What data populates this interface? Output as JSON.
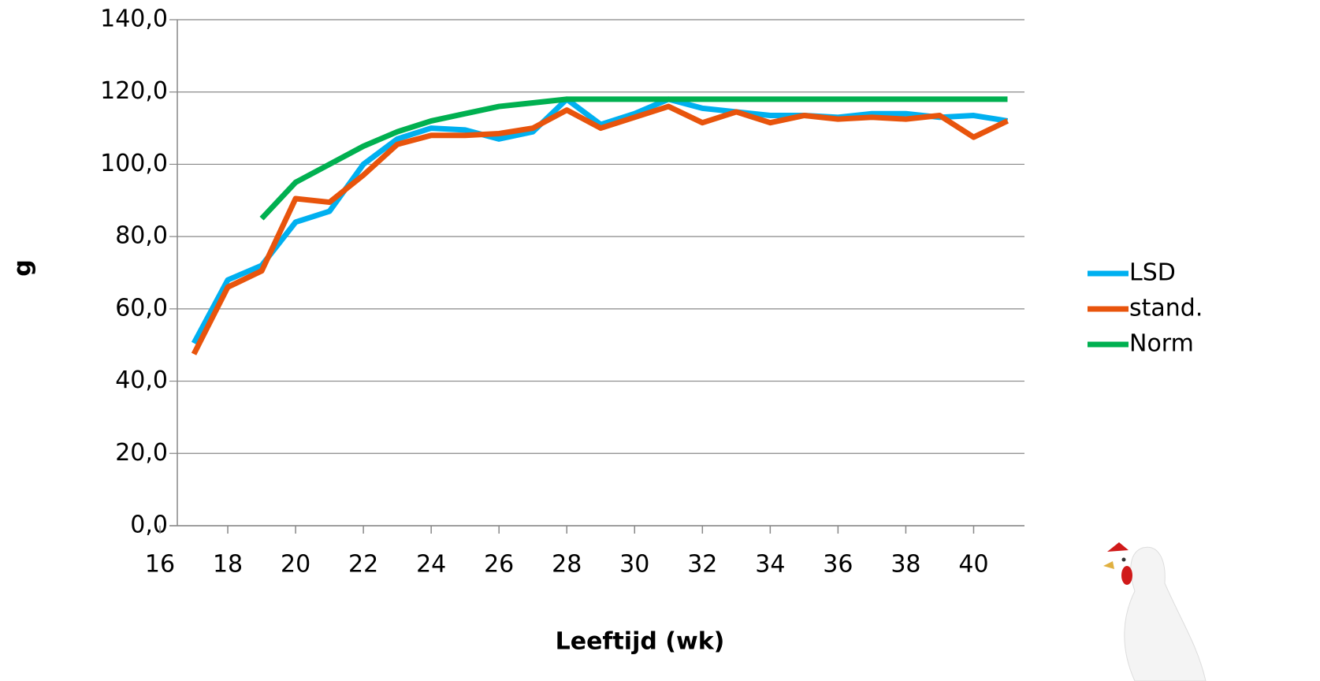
{
  "chart_data": {
    "type": "line",
    "x_label": "Leeftijd (wk)",
    "y_label": "g",
    "x": [
      17,
      18,
      19,
      20,
      21,
      22,
      23,
      24,
      25,
      26,
      27,
      28,
      29,
      30,
      31,
      32,
      33,
      34,
      35,
      36,
      37,
      38,
      39,
      40,
      41
    ],
    "series": [
      {
        "name": "LSD",
        "color": "#00b0f0",
        "values": [
          50.5,
          68,
          72,
          84,
          87,
          100,
          107,
          110,
          109.5,
          107,
          109,
          118,
          111,
          114,
          118,
          115.5,
          114.5,
          113.5,
          113.5,
          113,
          114,
          114,
          113,
          113.5,
          112
        ]
      },
      {
        "name": "stand.",
        "color": "#e8540c",
        "values": [
          47.5,
          66,
          70.5,
          90.5,
          89.5,
          97,
          105.5,
          108,
          108,
          108.5,
          110,
          115,
          110,
          113,
          116,
          111.5,
          114.5,
          111.5,
          113.5,
          112.5,
          113,
          112.5,
          113.5,
          107.5,
          112
        ]
      },
      {
        "name": "Norm",
        "color": "#00b050",
        "values": [
          null,
          null,
          85,
          95,
          100,
          105,
          109,
          112,
          114,
          116,
          117,
          118,
          118,
          118,
          118,
          118,
          118,
          118,
          118,
          118,
          118,
          118,
          118,
          118,
          118
        ]
      }
    ],
    "xlim": [
      16,
      41.5
    ],
    "xticks": [
      16,
      18,
      20,
      22,
      24,
      26,
      28,
      30,
      32,
      34,
      36,
      38,
      40
    ],
    "ylim": [
      0,
      140
    ],
    "yticks": [
      {
        "value": 0,
        "label": "0,0"
      },
      {
        "value": 20,
        "label": "20,0"
      },
      {
        "value": 40,
        "label": "40,0"
      },
      {
        "value": 60,
        "label": "60,0"
      },
      {
        "value": 80,
        "label": "80,0"
      },
      {
        "value": 100,
        "label": "100,0"
      },
      {
        "value": 120,
        "label": "120,0"
      },
      {
        "value": 140,
        "label": "140,0"
      }
    ],
    "grid": true,
    "legend": "right"
  }
}
